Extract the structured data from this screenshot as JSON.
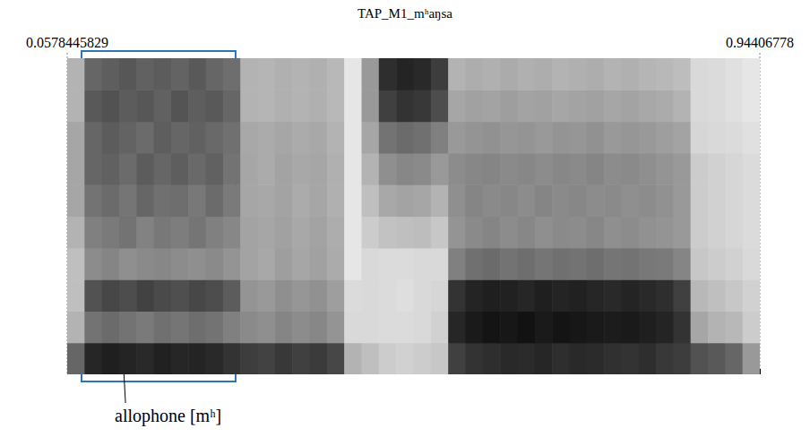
{
  "chart_data": {
    "type": "spectrogram",
    "title": "TAP_M1_mʰaŋsa",
    "xlim": [
      0.0578445829,
      0.94406778
    ],
    "xticks": [
      0.0578445829,
      0.94406778
    ],
    "ylim": [
      0,
      5000
    ],
    "tick_labels": "x",
    "grid": false,
    "color": "#000000",
    "x_bins": [
      0.0578445829,
      0.08,
      0.1022,
      0.1243,
      0.1465,
      0.1686,
      0.1908,
      0.2129,
      0.2351,
      0.2572,
      0.2794,
      0.3016,
      0.3237,
      0.3459,
      0.368,
      0.3902,
      0.4123,
      0.4345,
      0.4566,
      0.4788,
      0.501,
      0.5231,
      0.5453,
      0.5674,
      0.5896,
      0.6117,
      0.6339,
      0.656,
      0.6782,
      0.7004,
      0.7225,
      0.7447,
      0.7668,
      0.789,
      0.8111,
      0.8333,
      0.8554,
      0.8776,
      0.8998,
      0.9219,
      0.94406778
    ],
    "y_bins": [
      0,
      500,
      1000,
      1500,
      2000,
      2500,
      3000,
      3500,
      4000,
      4500,
      5000
    ],
    "zlim": [
      0,
      100
    ],
    "cells": [
      [
        60,
        85,
        88,
        86,
        84,
        87,
        85,
        86,
        84,
        80,
        76,
        74,
        78,
        75,
        77,
        72,
        30,
        25,
        20,
        18,
        20,
        22,
        75,
        80,
        82,
        84,
        83,
        85,
        82,
        84,
        83,
        81,
        80,
        82,
        78,
        76,
        68,
        65,
        60,
        40
      ],
      [
        30,
        55,
        58,
        55,
        52,
        56,
        54,
        57,
        55,
        50,
        46,
        44,
        48,
        45,
        47,
        42,
        15,
        15,
        14,
        14,
        15,
        18,
        85,
        90,
        92,
        91,
        93,
        90,
        92,
        91,
        90,
        89,
        90,
        88,
        86,
        80,
        35,
        30,
        28,
        20
      ],
      [
        25,
        68,
        72,
        70,
        74,
        71,
        69,
        72,
        70,
        64,
        42,
        40,
        44,
        41,
        43,
        38,
        14,
        15,
        14,
        13,
        15,
        16,
        80,
        86,
        88,
        87,
        85,
        88,
        86,
        87,
        85,
        84,
        86,
        84,
        82,
        75,
        28,
        25,
        22,
        18
      ],
      [
        25,
        45,
        48,
        44,
        46,
        47,
        45,
        44,
        46,
        42,
        36,
        34,
        38,
        35,
        37,
        33,
        10,
        15,
        14,
        14,
        15,
        15,
        50,
        56,
        58,
        55,
        57,
        54,
        56,
        55,
        57,
        54,
        55,
        53,
        52,
        48,
        22,
        20,
        18,
        15
      ],
      [
        30,
        50,
        52,
        55,
        49,
        53,
        51,
        54,
        50,
        47,
        36,
        35,
        37,
        34,
        36,
        32,
        10,
        20,
        24,
        25,
        26,
        22,
        42,
        46,
        48,
        45,
        47,
        44,
        46,
        45,
        47,
        44,
        45,
        43,
        42,
        40,
        20,
        18,
        16,
        14
      ],
      [
        35,
        55,
        58,
        54,
        60,
        56,
        57,
        53,
        58,
        52,
        35,
        34,
        36,
        33,
        35,
        31,
        10,
        25,
        34,
        36,
        35,
        30,
        44,
        48,
        46,
        47,
        45,
        48,
        46,
        47,
        45,
        46,
        44,
        45,
        43,
        40,
        20,
        18,
        16,
        14
      ],
      [
        35,
        60,
        62,
        58,
        64,
        60,
        63,
        59,
        62,
        55,
        35,
        33,
        36,
        34,
        35,
        31,
        10,
        30,
        44,
        47,
        46,
        40,
        45,
        47,
        48,
        46,
        47,
        45,
        47,
        46,
        48,
        45,
        46,
        44,
        42,
        40,
        20,
        18,
        16,
        14
      ],
      [
        35,
        60,
        64,
        61,
        58,
        63,
        60,
        62,
        59,
        56,
        34,
        33,
        35,
        33,
        34,
        30,
        10,
        35,
        55,
        58,
        56,
        50,
        40,
        42,
        43,
        41,
        42,
        40,
        42,
        41,
        43,
        40,
        41,
        40,
        38,
        36,
        16,
        15,
        14,
        12
      ],
      [
        30,
        65,
        68,
        64,
        66,
        62,
        67,
        63,
        65,
        60,
        30,
        29,
        31,
        30,
        31,
        28,
        10,
        40,
        75,
        80,
        78,
        70,
        35,
        37,
        36,
        38,
        36,
        37,
        35,
        36,
        37,
        35,
        36,
        34,
        33,
        30,
        15,
        14,
        12,
        10
      ],
      [
        30,
        60,
        63,
        66,
        62,
        64,
        61,
        65,
        60,
        57,
        30,
        29,
        31,
        30,
        31,
        28,
        10,
        40,
        82,
        86,
        84,
        76,
        30,
        32,
        31,
        33,
        31,
        32,
        30,
        31,
        32,
        30,
        31,
        29,
        28,
        26,
        15,
        14,
        12,
        10
      ]
    ],
    "annotations": [
      {
        "text": "allophone [mʰ]",
        "x": 0.121,
        "y": 2125,
        "box_xlim": [
          0.0762,
          0.2733
        ],
        "color": "#2e75b6"
      }
    ]
  }
}
